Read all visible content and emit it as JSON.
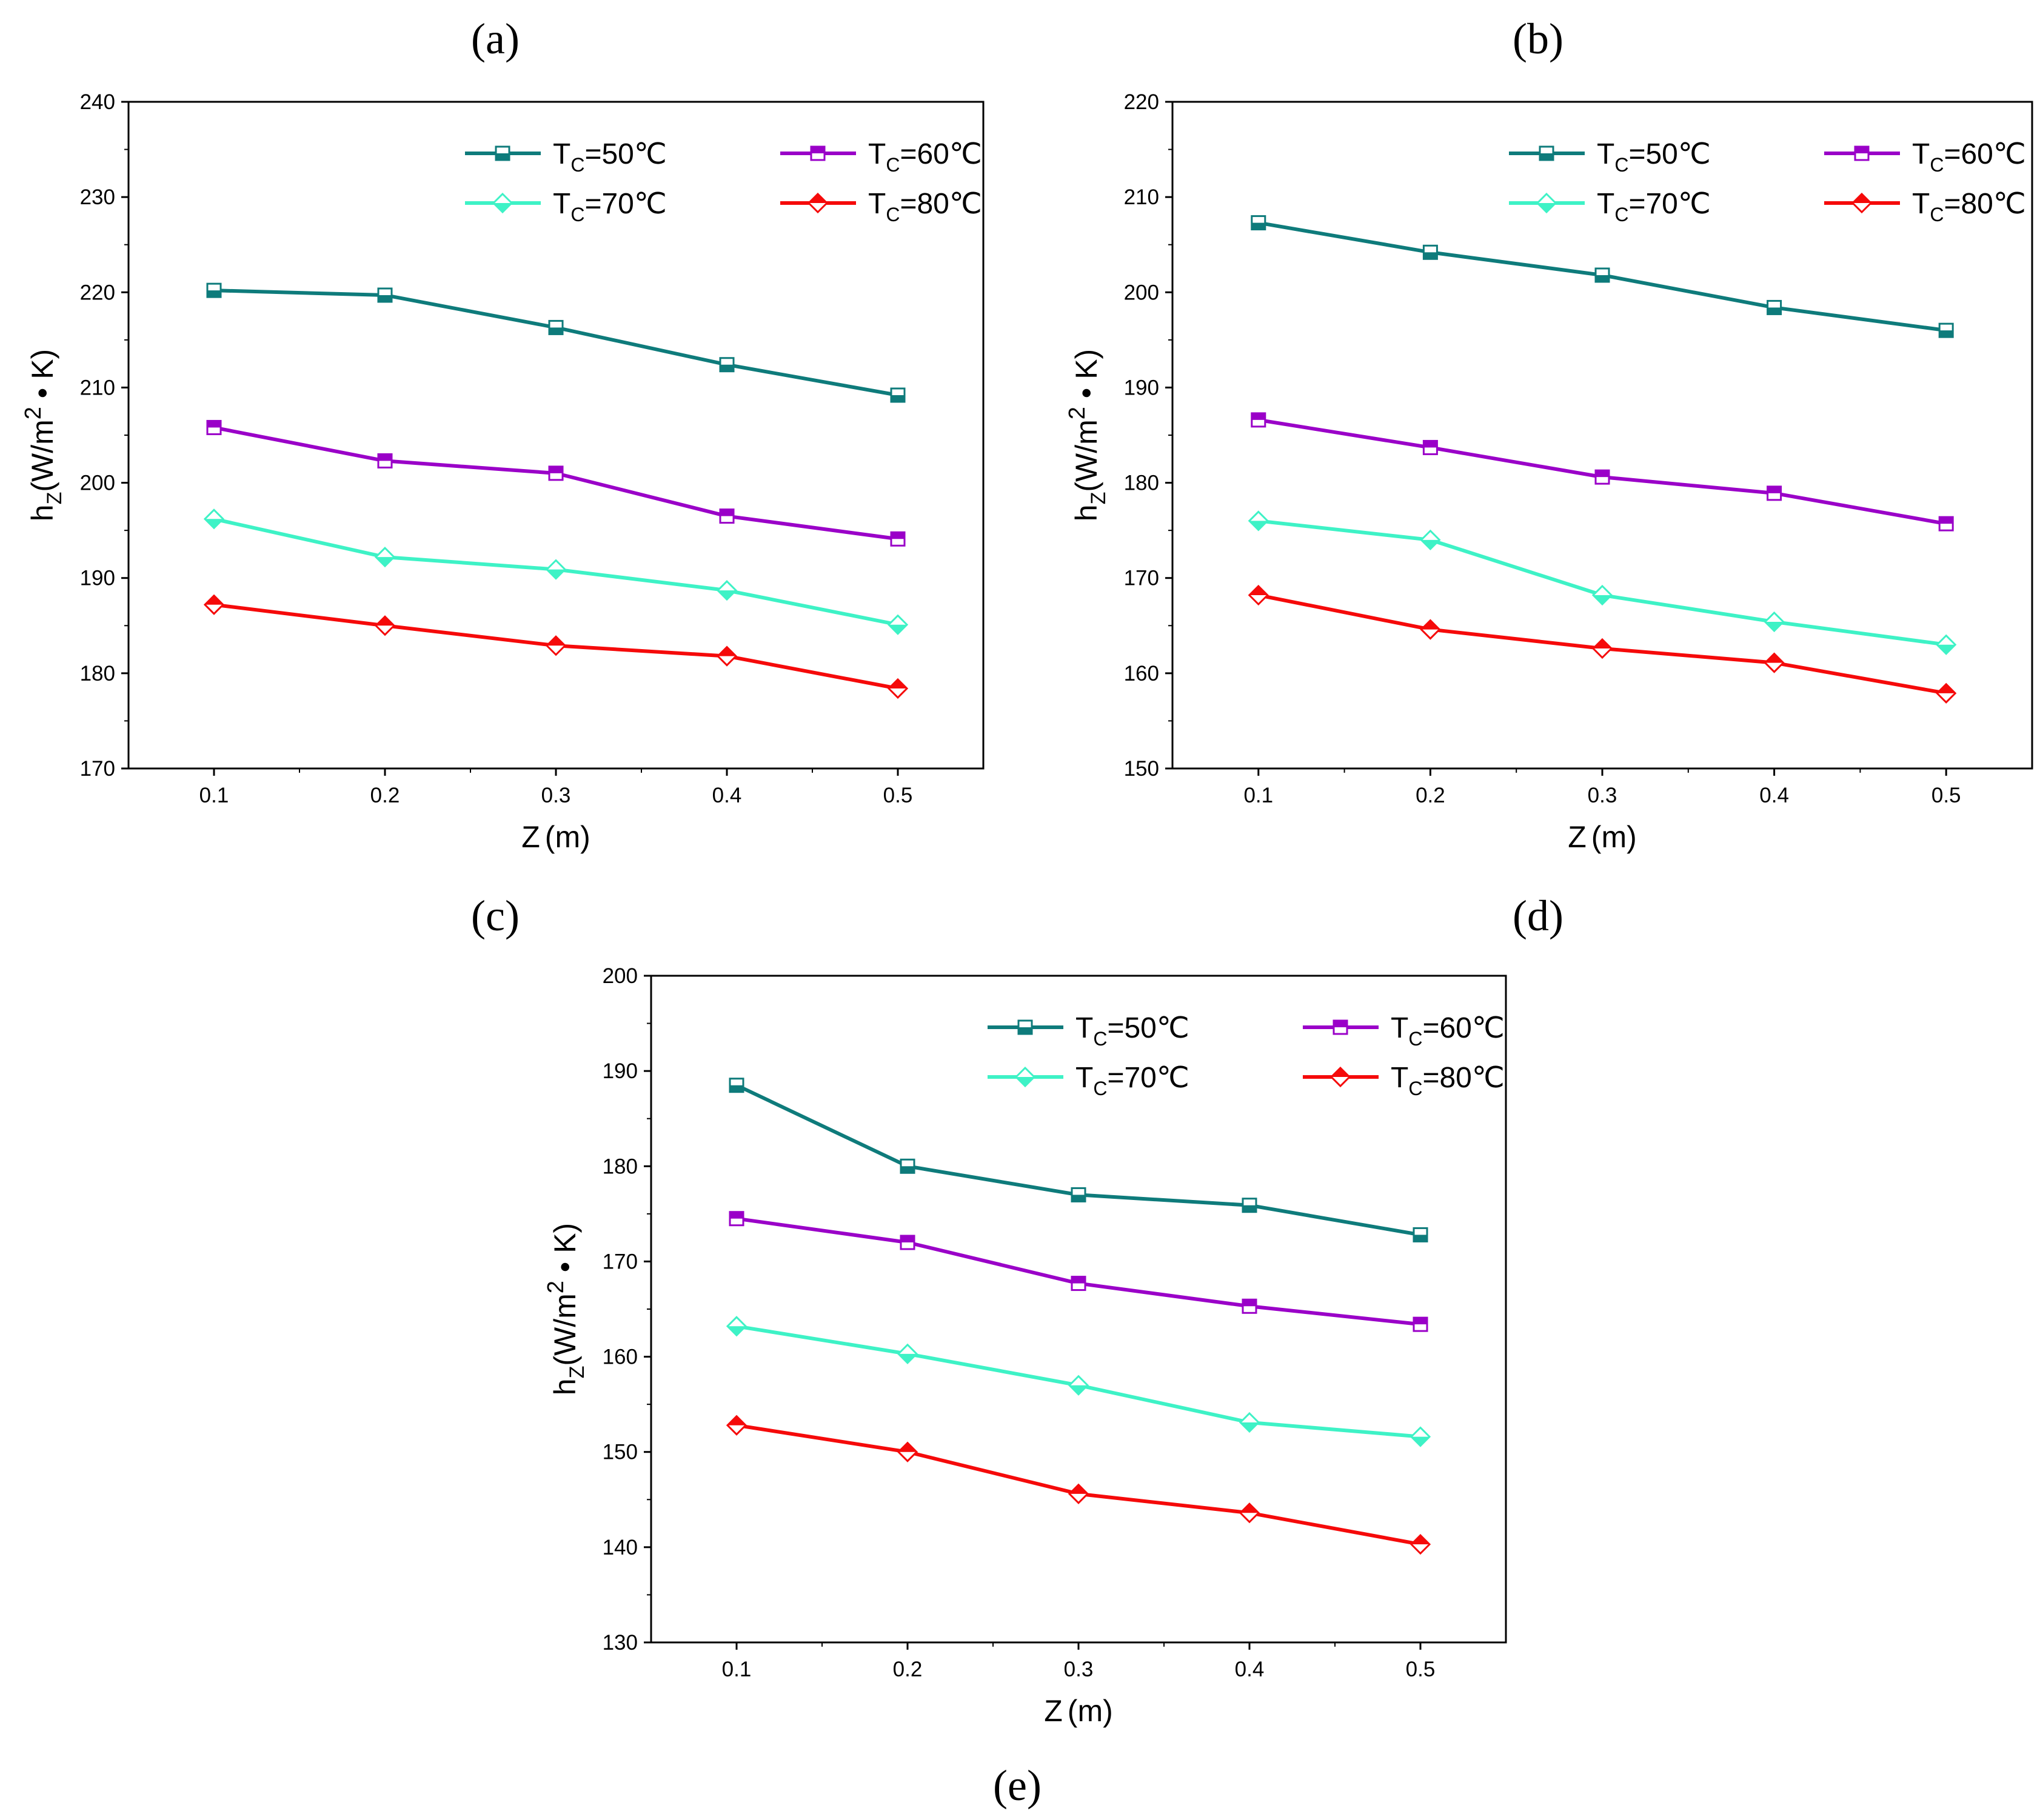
{
  "figure": {
    "panel_labels": [
      "(a)",
      "(b)",
      "(c)",
      "(d)",
      "(e)"
    ]
  },
  "legend_labels": {
    "t50": "T",
    "sub": "C",
    "t50_value": "=50℃",
    "t60_value": "=60℃",
    "t70_value": "=70℃",
    "t80_value": "=80℃"
  },
  "chart_data": [
    {
      "id": "a",
      "type": "line",
      "xlabel": "Z (m)",
      "ylabel": "hZ(W/m2 • K)",
      "ylabel_parts": {
        "h": "h",
        "sub": "Z",
        "unit_a": "(W/m",
        "sup": "2",
        "unit_b": " • K)"
      },
      "xlabel_parts": {
        "z": "Z",
        "unit": "(m)"
      },
      "x": [
        0.1,
        0.2,
        0.3,
        0.4,
        0.5
      ],
      "x_tick_labels": [
        "0.1",
        "0.2",
        "0.3",
        "0.4",
        "0.5"
      ],
      "xlim": [
        0.05,
        0.55
      ],
      "ylim": [
        170,
        240
      ],
      "y_ticks": [
        170,
        180,
        190,
        200,
        210,
        220,
        230,
        240
      ],
      "y_tick_labels": [
        "170",
        "180",
        "190",
        "200",
        "210",
        "220",
        "230",
        "240"
      ],
      "series": [
        {
          "name": "TC=50℃",
          "values": [
            220.2,
            219.7,
            216.3,
            212.4,
            209.2
          ]
        },
        {
          "name": "TC=60℃",
          "values": [
            205.8,
            202.3,
            201.0,
            196.5,
            194.1
          ]
        },
        {
          "name": "TC=70℃",
          "values": [
            196.2,
            192.2,
            190.9,
            188.7,
            185.1
          ]
        },
        {
          "name": "TC=80℃",
          "values": [
            187.2,
            185.0,
            182.9,
            181.8,
            178.4
          ]
        }
      ]
    },
    {
      "id": "b",
      "type": "line",
      "xlabel": "Z (m)",
      "ylabel": "hZ(W/m2 • K)",
      "ylabel_parts": {
        "h": "h",
        "sub": "Z",
        "unit_a": "(W/m",
        "sup": "2",
        "unit_b": " • K)"
      },
      "xlabel_parts": {
        "z": "Z",
        "unit": "(m)"
      },
      "x": [
        0.1,
        0.2,
        0.3,
        0.4,
        0.5
      ],
      "x_tick_labels": [
        "0.1",
        "0.2",
        "0.3",
        "0.4",
        "0.5"
      ],
      "xlim": [
        0.05,
        0.55
      ],
      "ylim": [
        150,
        220
      ],
      "y_ticks": [
        150,
        160,
        170,
        180,
        190,
        200,
        210,
        220
      ],
      "y_tick_labels": [
        "150",
        "160",
        "170",
        "180",
        "190",
        "200",
        "210",
        "220"
      ],
      "series": [
        {
          "name": "TC=50℃",
          "values": [
            207.3,
            204.2,
            201.8,
            198.4,
            196.0
          ]
        },
        {
          "name": "TC=60℃",
          "values": [
            186.6,
            183.7,
            180.6,
            178.9,
            175.7
          ]
        },
        {
          "name": "TC=70℃",
          "values": [
            176.0,
            174.0,
            168.2,
            165.4,
            163.0
          ]
        },
        {
          "name": "TC=80℃",
          "values": [
            168.2,
            164.6,
            162.6,
            161.1,
            157.9
          ]
        }
      ]
    },
    {
      "id": "c",
      "type": "line",
      "xlabel": "Z (m)",
      "ylabel": "hZ(W/m2 • K)",
      "ylabel_parts": {
        "h": "h",
        "sub": "Z",
        "unit_a": "(W/m",
        "sup": "2",
        "unit_b": " • K)"
      },
      "xlabel_parts": {
        "z": "Z",
        "unit": "(m)"
      },
      "x": [
        0.1,
        0.2,
        0.3,
        0.4,
        0.5
      ],
      "x_tick_labels": [
        "0.1",
        "0.2",
        "0.3",
        "0.4",
        "0.5"
      ],
      "xlim": [
        0.05,
        0.55
      ],
      "ylim": [
        130,
        200
      ],
      "y_ticks": [
        130,
        140,
        150,
        160,
        170,
        180,
        190,
        200
      ],
      "y_tick_labels": [
        "130",
        "140",
        "150",
        "160",
        "170",
        "180",
        "190",
        "200"
      ],
      "series": [
        {
          "name": "TC=50℃",
          "values": [
            188.5,
            180.0,
            177.0,
            175.9,
            172.8
          ]
        },
        {
          "name": "TC=60℃",
          "values": [
            174.5,
            172.0,
            167.7,
            165.3,
            163.4
          ]
        },
        {
          "name": "TC=70℃",
          "values": [
            163.2,
            160.3,
            157.0,
            153.1,
            151.6
          ]
        },
        {
          "name": "TC=80℃",
          "values": [
            152.8,
            150.0,
            145.6,
            143.6,
            140.3
          ]
        }
      ]
    }
  ],
  "series_style": [
    {
      "color": "#0e7b7b",
      "marker": "square",
      "fill": "bottom"
    },
    {
      "color": "#9a00c8",
      "marker": "square",
      "fill": "top"
    },
    {
      "color": "#3ef2c6",
      "marker": "diamond",
      "fill": "bottom"
    },
    {
      "color": "#f50a0a",
      "marker": "diamond",
      "fill": "top"
    }
  ]
}
